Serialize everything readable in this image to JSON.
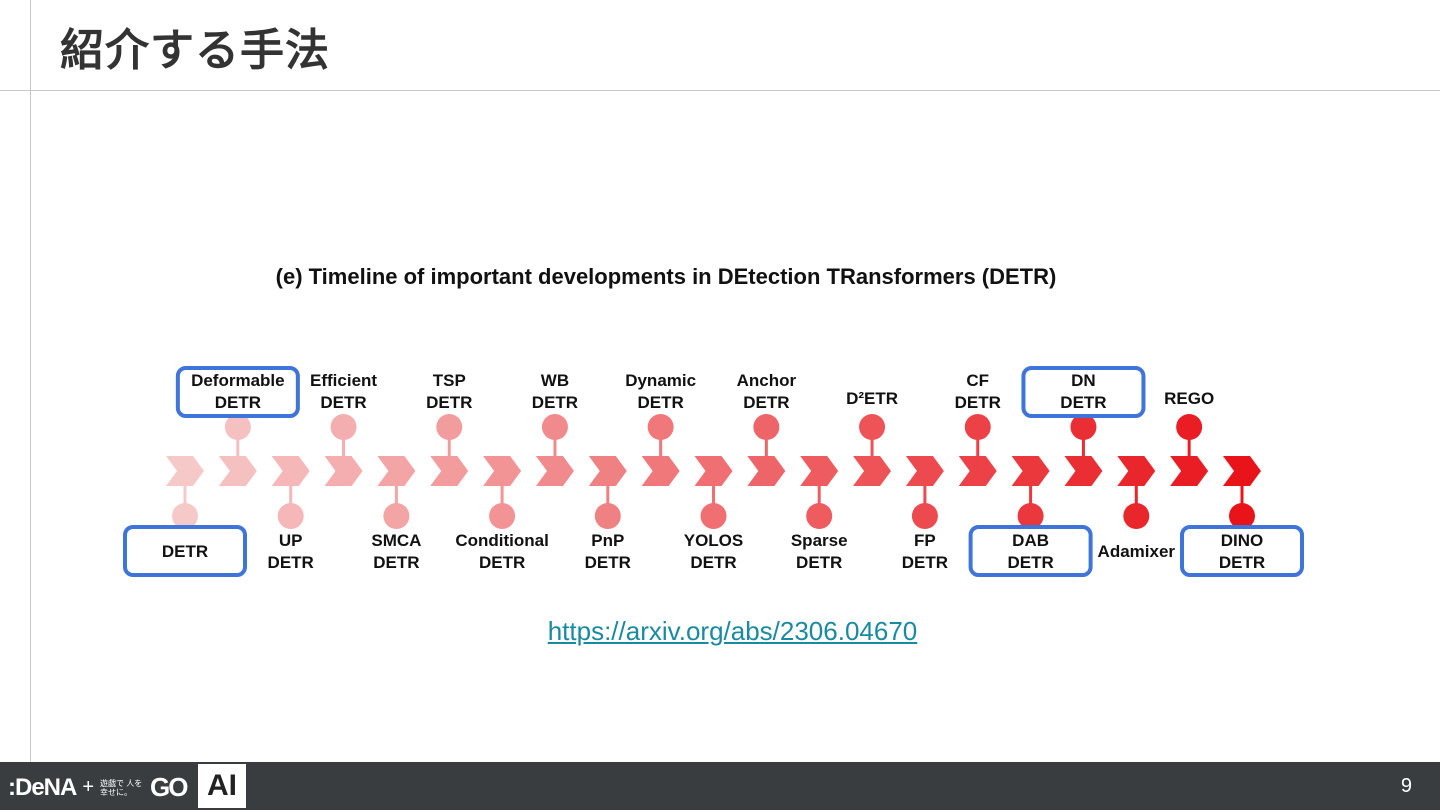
{
  "slide": {
    "title": "紹介する手法",
    "page_number": "9",
    "link_text": "https://arxiv.org/abs/2306.04670"
  },
  "figure": {
    "heading": "(e) Timeline of important developments in DEtection TRansformers (DETR)",
    "milestones": [
      {
        "line1": "DETR",
        "line2": "",
        "side": "bottom",
        "highlighted": true
      },
      {
        "line1": "Deformable",
        "line2": "DETR",
        "side": "top",
        "highlighted": true
      },
      {
        "line1": "UP",
        "line2": "DETR",
        "side": "bottom",
        "highlighted": false
      },
      {
        "line1": "Efficient",
        "line2": "DETR",
        "side": "top",
        "highlighted": false
      },
      {
        "line1": "SMCA",
        "line2": "DETR",
        "side": "bottom",
        "highlighted": false
      },
      {
        "line1": "TSP",
        "line2": "DETR",
        "side": "top",
        "highlighted": false
      },
      {
        "line1": "Conditional",
        "line2": "DETR",
        "side": "bottom",
        "highlighted": false
      },
      {
        "line1": "WB",
        "line2": "DETR",
        "side": "top",
        "highlighted": false
      },
      {
        "line1": "PnP",
        "line2": "DETR",
        "side": "bottom",
        "highlighted": false
      },
      {
        "line1": "Dynamic",
        "line2": "DETR",
        "side": "top",
        "highlighted": false
      },
      {
        "line1": "YOLOS",
        "line2": "DETR",
        "side": "bottom",
        "highlighted": false
      },
      {
        "line1": "Anchor",
        "line2": "DETR",
        "side": "top",
        "highlighted": false
      },
      {
        "line1": "Sparse",
        "line2": "DETR",
        "side": "bottom",
        "highlighted": false
      },
      {
        "line1": "D²ETR",
        "line2": "",
        "side": "top",
        "highlighted": false
      },
      {
        "line1": "FP",
        "line2": "DETR",
        "side": "bottom",
        "highlighted": false
      },
      {
        "line1": "CF",
        "line2": "DETR",
        "side": "top",
        "highlighted": false
      },
      {
        "line1": "DAB",
        "line2": "DETR",
        "side": "bottom",
        "highlighted": true
      },
      {
        "line1": "DN",
        "line2": "DETR",
        "side": "top",
        "highlighted": true
      },
      {
        "line1": "Adamixer",
        "line2": "",
        "side": "bottom",
        "highlighted": false
      },
      {
        "line1": "REGO",
        "line2": "",
        "side": "top",
        "highlighted": false
      },
      {
        "line1": "DINO",
        "line2": "DETR",
        "side": "bottom",
        "highlighted": true
      }
    ],
    "colors": {
      "start": "#f6c9c9",
      "end": "#e8141a",
      "highlight": "#3f74d8",
      "text": "#111111"
    }
  },
  "footer": {
    "brand_dena": ":DeNA",
    "brand_plus": "+",
    "brand_jp": "遊戯で 人を幸せに。",
    "brand_go": "GO",
    "ai_label": "AI"
  }
}
